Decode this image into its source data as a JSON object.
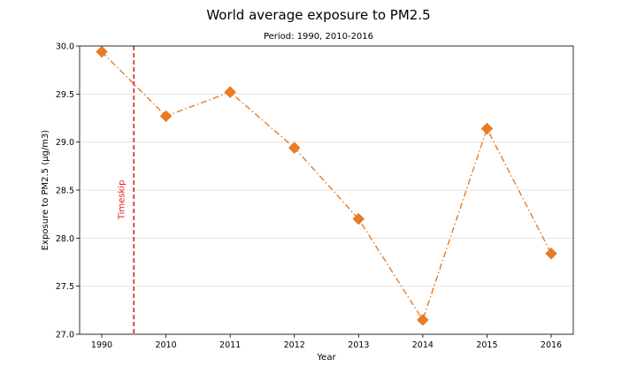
{
  "chart_data": {
    "type": "line",
    "title": "World average exposure to PM2.5",
    "subtitle": "Period: 1990, 2010-2016",
    "xlabel": "Year",
    "ylabel": "Exposure to PM2.5 (µg/m3)",
    "categories": [
      "1990",
      "2010",
      "2011",
      "2012",
      "2013",
      "2014",
      "2015",
      "2016"
    ],
    "series": [
      {
        "values": [
          29.94,
          29.27,
          29.52,
          28.94,
          28.2,
          27.15,
          29.14,
          27.84
        ]
      }
    ],
    "ylim": [
      27.0,
      30.0
    ],
    "yticks": [
      "27.0",
      "27.5",
      "28.0",
      "28.5",
      "29.0",
      "29.5",
      "30.0"
    ],
    "grid": "horizontal",
    "annotation": {
      "text": "Timeskip",
      "between": [
        "1990",
        "2010"
      ]
    },
    "colors": {
      "series": "#e87c24",
      "annotation": "#e0201b",
      "grid": "#dddddd"
    }
  }
}
